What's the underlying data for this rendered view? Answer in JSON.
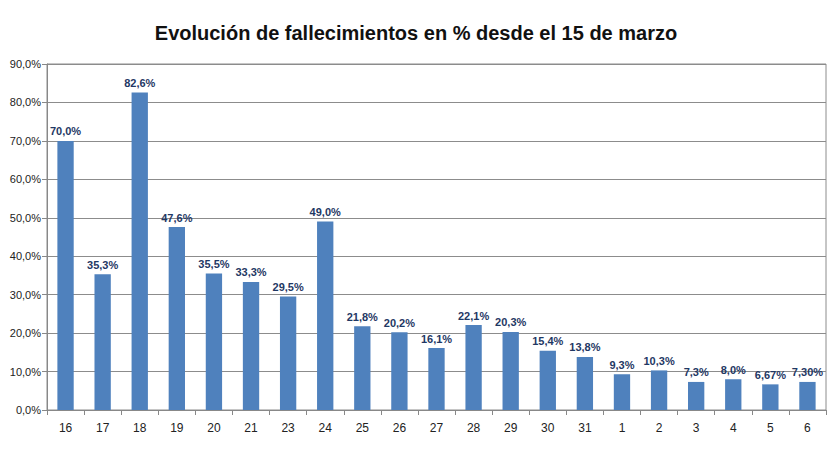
{
  "chart_data": {
    "type": "bar",
    "title": "Evolución de fallecimientos en % desde el 15 de marzo",
    "categories": [
      "16",
      "17",
      "18",
      "19",
      "20",
      "21",
      "23",
      "24",
      "25",
      "26",
      "27",
      "28",
      "29",
      "30",
      "31",
      "1",
      "2",
      "3",
      "4",
      "5",
      "6"
    ],
    "values": [
      70.0,
      35.3,
      82.6,
      47.6,
      35.5,
      33.3,
      29.5,
      49.0,
      21.8,
      20.2,
      16.1,
      22.1,
      20.3,
      15.4,
      13.8,
      9.3,
      10.3,
      7.3,
      8.0,
      6.67,
      7.3
    ],
    "value_labels": [
      "70,0%",
      "35,3%",
      "82,6%",
      "47,6%",
      "35,5%",
      "33,3%",
      "29,5%",
      "49,0%",
      "21,8%",
      "20,2%",
      "16,1%",
      "22,1%",
      "20,3%",
      "15,4%",
      "13,8%",
      "9,3%",
      "10,3%",
      "7,3%",
      "8,0%",
      "6,67%",
      "7,30%"
    ],
    "color": "#4f81bd",
    "ylim": [
      0,
      90
    ],
    "yticks": [
      {
        "value": 0,
        "label": "0,0%"
      },
      {
        "value": 10,
        "label": "10,0%"
      },
      {
        "value": 20,
        "label": "20,0%"
      },
      {
        "value": 30,
        "label": "30,0%"
      },
      {
        "value": 40,
        "label": "40,0%"
      },
      {
        "value": 50,
        "label": "50,0%"
      },
      {
        "value": 60,
        "label": "60,0%"
      },
      {
        "value": 70,
        "label": "70,0%"
      },
      {
        "value": 80,
        "label": "80,0%"
      },
      {
        "value": 90,
        "label": "90,0%"
      }
    ],
    "grid": true,
    "data_labels": true
  }
}
